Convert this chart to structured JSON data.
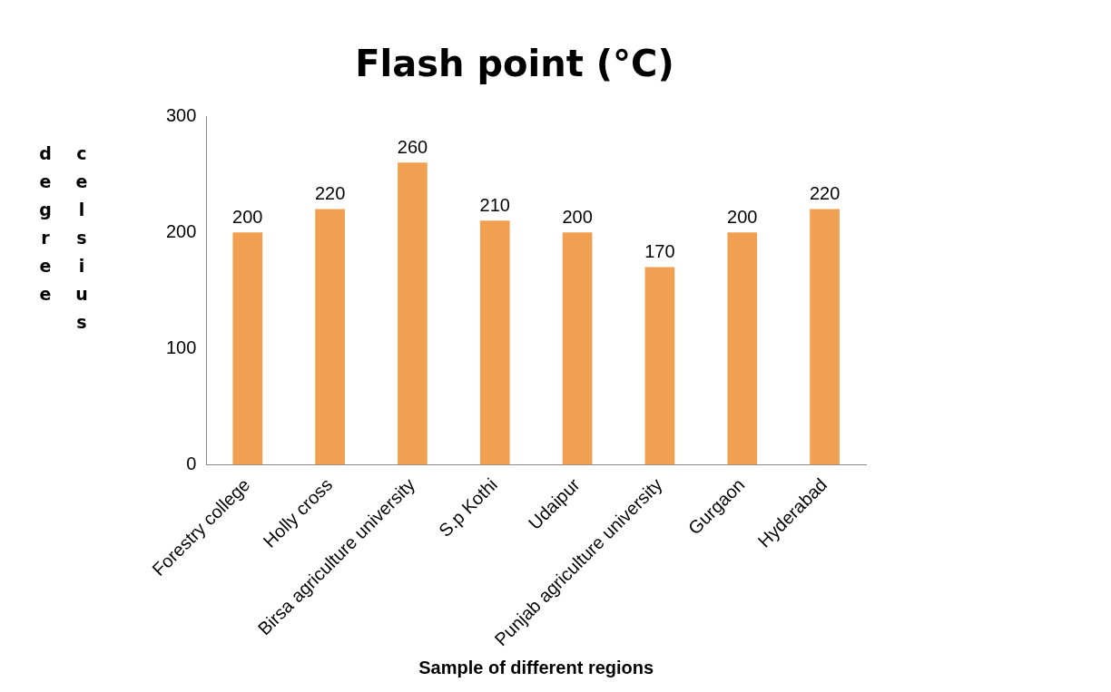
{
  "chart_data": {
    "type": "bar",
    "title": "Flash point (°C)",
    "xlabel": "Sample of different regions",
    "ylabel": "degree celsius",
    "categories": [
      "Forestry college",
      "Holly cross",
      "Birsa agriculture university",
      "S.p Kothi",
      "Udaipur",
      "Punjab agriculture university",
      "Gurgaon",
      "Hyderabad"
    ],
    "values": [
      200,
      220,
      260,
      210,
      200,
      170,
      200,
      220
    ],
    "color": "#f0a050",
    "ylim": [
      0,
      300
    ],
    "yticks": [
      0,
      100,
      200,
      300
    ],
    "grid": false,
    "legend": false,
    "data_labels": true
  }
}
